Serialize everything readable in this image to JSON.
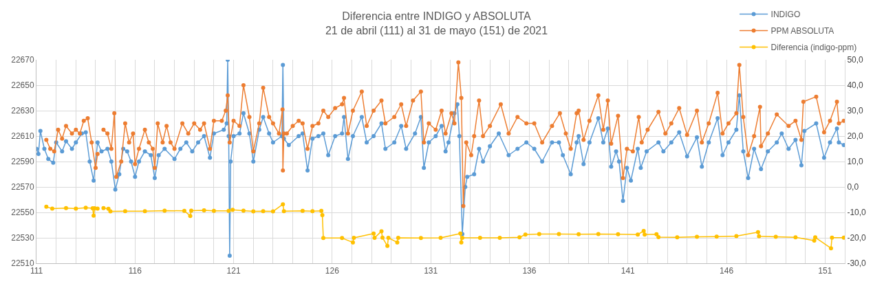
{
  "chart_data": {
    "type": "line",
    "title": "Diferencia entre INDIGO y ABSOLUTA",
    "subtitle": "21 de abril (111) al 31 de mayo (151) de 2021",
    "xlim": [
      111,
      152
    ],
    "xticks": [
      111,
      {
        "value": 112,
        "label": null
      },
      {
        "value": 113,
        "label": null
      },
      {
        "value": 114,
        "label": null
      },
      {
        "value": 115,
        "label": null
      },
      116,
      {
        "value": 117,
        "label": null
      },
      {
        "value": 118,
        "label": null
      },
      {
        "value": 119,
        "label": null
      },
      {
        "value": 120,
        "label": null
      },
      121,
      {
        "value": 122,
        "label": null
      },
      {
        "value": 123,
        "label": null
      },
      {
        "value": 124,
        "label": null
      },
      {
        "value": 125,
        "label": null
      },
      126,
      {
        "value": 127,
        "label": null
      },
      {
        "value": 128,
        "label": null
      },
      {
        "value": 129,
        "label": null
      },
      {
        "value": 130,
        "label": null
      },
      131,
      {
        "value": 132,
        "label": null
      },
      {
        "value": 133,
        "label": null
      },
      {
        "value": 134,
        "label": null
      },
      {
        "value": 135,
        "label": null
      },
      136,
      {
        "value": 137,
        "label": null
      },
      {
        "value": 138,
        "label": null
      },
      {
        "value": 139,
        "label": null
      },
      {
        "value": 140,
        "label": null
      },
      141,
      {
        "value": 142,
        "label": null
      },
      {
        "value": 143,
        "label": null
      },
      {
        "value": 144,
        "label": null
      },
      {
        "value": 145,
        "label": null
      },
      146,
      {
        "value": 147,
        "label": null
      },
      {
        "value": 148,
        "label": null
      },
      {
        "value": 149,
        "label": null
      },
      {
        "value": 150,
        "label": null
      },
      151
    ],
    "ylim": [
      22510,
      22670
    ],
    "yticks": [
      22510,
      22530,
      22550,
      22570,
      22590,
      22610,
      22630,
      22650,
      22670
    ],
    "y2lim": [
      -30,
      50
    ],
    "y2ticks": [
      {
        "value": -30,
        "label": "-30,0"
      },
      {
        "value": -20,
        "label": "-20,0"
      },
      {
        "value": -10,
        "label": "-10,0"
      },
      {
        "value": 0,
        "label": "0,0"
      },
      {
        "value": 10,
        "label": "10,0"
      },
      {
        "value": 20,
        "label": "20,0"
      },
      {
        "value": 30,
        "label": "30,0"
      },
      {
        "value": 40,
        "label": "40,0"
      },
      {
        "value": 50,
        "label": "50,0"
      }
    ],
    "grid": true,
    "legend": "top right",
    "marker": "circle",
    "series": [
      {
        "name": "INDIGO",
        "color": "#5b9bd5",
        "x": [
          111.0,
          111.1,
          111.2,
          111.4,
          111.6,
          111.85,
          112.0,
          112.3,
          112.5,
          112.8,
          113.0,
          113.3,
          113.5,
          113.7,
          113.9,
          114.1,
          114.3,
          114.6,
          114.8,
          115.0,
          115.2,
          115.4,
          115.6,
          115.8,
          116.0,
          116.2,
          116.5,
          116.8,
          117.0,
          117.2,
          117.5,
          118.0,
          118.3,
          118.6,
          118.9,
          119.2,
          119.5,
          119.8,
          120.0,
          120.5,
          120.65,
          120.7,
          120.75,
          120.8,
          120.85,
          121.0,
          121.3,
          121.5,
          121.8,
          122.0,
          122.3,
          122.5,
          122.8,
          123.0,
          123.45,
          123.5,
          123.55,
          123.8,
          124.3,
          124.5,
          124.75,
          125.0,
          125.3,
          125.55,
          125.8,
          126.15,
          126.5,
          126.6,
          126.8,
          127.05,
          127.5,
          127.75,
          128.1,
          128.5,
          128.7,
          129.15,
          129.5,
          129.75,
          130.2,
          130.5,
          130.65,
          130.9,
          131.25,
          131.55,
          131.75,
          131.9,
          132.2,
          132.35,
          132.45,
          132.6,
          132.75,
          132.85,
          133.2,
          133.45,
          133.65,
          134.0,
          134.45,
          134.95,
          135.4,
          135.85,
          136.25,
          136.65,
          137.15,
          137.5,
          137.7,
          138.1,
          138.4,
          138.5,
          138.75,
          139.05,
          139.5,
          139.75,
          139.98,
          140.15,
          140.4,
          140.55,
          140.75,
          140.95,
          141.15,
          141.5,
          141.65,
          141.95,
          142.55,
          142.8,
          143.2,
          143.6,
          144.0,
          144.5,
          144.75,
          145.1,
          145.55,
          145.8,
          146.1,
          146.5,
          146.65,
          146.85,
          147.1,
          147.4,
          147.75,
          148.1,
          148.55,
          148.8,
          149.15,
          149.5,
          149.8,
          149.95,
          150.55,
          150.95,
          151.25,
          151.6,
          151.7,
          151.95
        ],
        "values": [
          22600,
          22596,
          22614,
          22600,
          22592,
          22589,
          22605,
          22598,
          22606,
          22600,
          22605,
          22612,
          22613,
          22590,
          22575,
          22605,
          22598,
          22600,
          22590,
          22568,
          22580,
          22600,
          22598,
          22590,
          22578,
          22590,
          22598,
          22595,
          22577,
          22595,
          22600,
          22592,
          22600,
          22605,
          22598,
          22605,
          22610,
          22593,
          22612,
          22615,
          22620,
          22670,
          22610,
          22516,
          22590,
          22610,
          22612,
          22628,
          22612,
          22590,
          22615,
          22625,
          22612,
          22605,
          22610,
          22666,
          22608,
          22603,
          22610,
          22612,
          22583,
          22608,
          22610,
          22612,
          22595,
          22610,
          22612,
          22625,
          22592,
          22610,
          22625,
          22605,
          22610,
          22620,
          22600,
          22605,
          22618,
          22600,
          22612,
          22625,
          22585,
          22605,
          22610,
          22618,
          22598,
          22605,
          22628,
          22635,
          22610,
          22533,
          22570,
          22578,
          22580,
          22600,
          22590,
          22602,
          22612,
          22595,
          22600,
          22605,
          22600,
          22590,
          22605,
          22605,
          22595,
          22580,
          22605,
          22610,
          22588,
          22605,
          22624,
          22605,
          22616,
          22586,
          22598,
          22590,
          22559,
          22585,
          22575,
          22600,
          22585,
          22598,
          22605,
          22598,
          22605,
          22613,
          22594,
          22609,
          22586,
          22605,
          22624,
          22595,
          22605,
          22615,
          22642,
          22598,
          22577,
          22600,
          22584,
          22598,
          22605,
          22612,
          22600,
          22607,
          22587,
          22614,
          22620,
          22593,
          22605,
          22616,
          22605,
          22603
        ]
      },
      {
        "name": "PPM ABSOLUTA",
        "color": "#ed7d31",
        "x": [
          111.5,
          111.7,
          111.9,
          112.1,
          112.3,
          112.5,
          112.8,
          113.0,
          113.2,
          113.4,
          113.6,
          113.8,
          114.0,
          114.1,
          114.25,
          114.4,
          114.6,
          114.8,
          114.95,
          115.05,
          115.3,
          115.5,
          115.7,
          115.9,
          116.0,
          116.2,
          116.5,
          116.7,
          116.9,
          117.0,
          117.15,
          117.4,
          117.6,
          117.8,
          118.0,
          118.4,
          118.7,
          119.0,
          119.3,
          119.5,
          119.8,
          120.0,
          120.4,
          120.6,
          120.7,
          120.8,
          121.0,
          121.3,
          121.5,
          121.8,
          122.0,
          122.3,
          122.5,
          122.8,
          123.0,
          123.3,
          123.48,
          123.5,
          123.55,
          123.7,
          124.0,
          124.3,
          124.5,
          124.75,
          125.0,
          125.3,
          125.55,
          125.8,
          126.15,
          126.5,
          126.6,
          126.8,
          127.05,
          127.5,
          127.75,
          128.1,
          128.5,
          128.7,
          129.15,
          129.5,
          129.75,
          130.1,
          130.5,
          130.65,
          130.9,
          131.25,
          131.55,
          131.75,
          132.05,
          132.2,
          132.4,
          132.55,
          132.65,
          132.8,
          133.05,
          133.2,
          133.45,
          133.65,
          134.0,
          134.55,
          134.95,
          135.4,
          135.85,
          136.25,
          136.65,
          137.15,
          137.55,
          137.85,
          138.1,
          138.4,
          138.5,
          138.75,
          139.05,
          139.5,
          139.75,
          139.98,
          140.15,
          140.5,
          140.75,
          140.95,
          141.25,
          141.55,
          141.7,
          142.0,
          142.55,
          142.9,
          143.2,
          143.6,
          144.0,
          144.5,
          144.75,
          145.1,
          145.55,
          145.8,
          146.1,
          146.5,
          146.65,
          146.85,
          147.1,
          147.4,
          147.7,
          147.75,
          148.1,
          148.55,
          149.15,
          149.5,
          149.8,
          149.9,
          150.55,
          150.95,
          151.25,
          151.6,
          151.7,
          151.95
        ],
        "values": [
          22607,
          22600,
          22598,
          22615,
          22608,
          22618,
          22612,
          22615,
          22612,
          22622,
          22624,
          22605,
          22585,
          22596,
          null,
          22615,
          22612,
          22600,
          22628,
          22578,
          22590,
          22620,
          22605,
          22612,
          22588,
          22600,
          22615,
          22605,
          22600,
          22585,
          22620,
          22605,
          22618,
          22605,
          22600,
          22620,
          22612,
          22620,
          22615,
          22620,
          22600,
          22622,
          22622,
          22630,
          22642,
          22605,
          22622,
          22618,
          22650,
          22625,
          22598,
          22620,
          22648,
          22625,
          22620,
          22612,
          22631,
          22583,
          22612,
          22612,
          22618,
          22622,
          22620,
          22600,
          22618,
          22620,
          22630,
          22625,
          22632,
          22635,
          22640,
          22612,
          22630,
          22645,
          22618,
          22630,
          22638,
          22620,
          22625,
          22635,
          22618,
          22638,
          22645,
          22605,
          22620,
          22615,
          22630,
          22612,
          22628,
          22620,
          22668,
          22640,
          22555,
          22605,
          22595,
          22610,
          22638,
          22610,
          22618,
          22635,
          22612,
          22625,
          22620,
          22620,
          22605,
          22618,
          22628,
          22612,
          22600,
          22628,
          22630,
          22607,
          22622,
          22642,
          22615,
          22638,
          22604,
          22626,
          22577,
          22600,
          22598,
          22625,
          22605,
          22615,
          22629,
          22612,
          22620,
          22632,
          22611,
          22630,
          22605,
          22620,
          22644,
          22612,
          22620,
          22628,
          22666,
          22625,
          22595,
          22610,
          22633,
          22602,
          22612,
          22627,
          22618,
          22622,
          22607,
          22637,
          22641,
          22613,
          22622,
          22637,
          22620,
          22622
        ]
      },
      {
        "name": "Diferencia (indigo-ppm)",
        "color": "#ffc000",
        "axis": "y2",
        "x": [
          111.5,
          111.8,
          112.5,
          113.0,
          113.5,
          113.85,
          113.9,
          113.95,
          114.1,
          114.25,
          114.4,
          114.65,
          114.75,
          115.5,
          116.5,
          117.5,
          118.5,
          118.8,
          118.85,
          119.5,
          120.0,
          120.75,
          120.8,
          120.95,
          121.5,
          122.0,
          122.5,
          123.0,
          123.5,
          123.55,
          124.5,
          125.0,
          125.45,
          125.5,
          125.55,
          126.5,
          127.05,
          127.1,
          128.1,
          128.15,
          128.5,
          128.55,
          128.8,
          128.85,
          129.3,
          129.35,
          130.5,
          131.5,
          132.5,
          132.55,
          132.6,
          133.5,
          134.5,
          135.5,
          135.8,
          136.5,
          137.5,
          138.5,
          139.5,
          140.5,
          141.5,
          141.8,
          141.85,
          142.45,
          142.55,
          143.5,
          144.5,
          145.5,
          146.5,
          147.6,
          147.65,
          148.5,
          149.5,
          150.45,
          150.5,
          151.3,
          151.35,
          151.95
        ],
        "values": [
          -7.8,
          -8.5,
          -8.3,
          -8.5,
          -8.2,
          -8.4,
          -11.3,
          -8.4,
          -8.5,
          null,
          -8.3,
          -8.6,
          -9.6,
          -9.5,
          -9.5,
          -9.3,
          -9.4,
          -11.4,
          -9.3,
          -9.2,
          -9.4,
          -9.4,
          null,
          -9.0,
          -9.3,
          -9.6,
          -9.5,
          -9.6,
          -6.8,
          -9.5,
          -9.4,
          -9.5,
          -9.4,
          -11.1,
          -20.1,
          -20.1,
          -21.8,
          -20.0,
          -18.3,
          -20.0,
          -17.4,
          -19.9,
          -23.2,
          -20.0,
          -21.8,
          -20.0,
          -20.1,
          -20.0,
          -18.3,
          -21.8,
          -20.0,
          -20.0,
          -20.0,
          -19.8,
          -18.7,
          -18.5,
          -18.5,
          -18.6,
          -18.5,
          -18.6,
          -18.7,
          -17.3,
          -18.7,
          -18.6,
          -19.7,
          -19.8,
          -19.6,
          -19.5,
          -19.3,
          -17.8,
          -19.4,
          -19.6,
          -19.8,
          -21.1,
          -19.8,
          -24.1,
          -19.9,
          -19.9
        ]
      }
    ]
  }
}
